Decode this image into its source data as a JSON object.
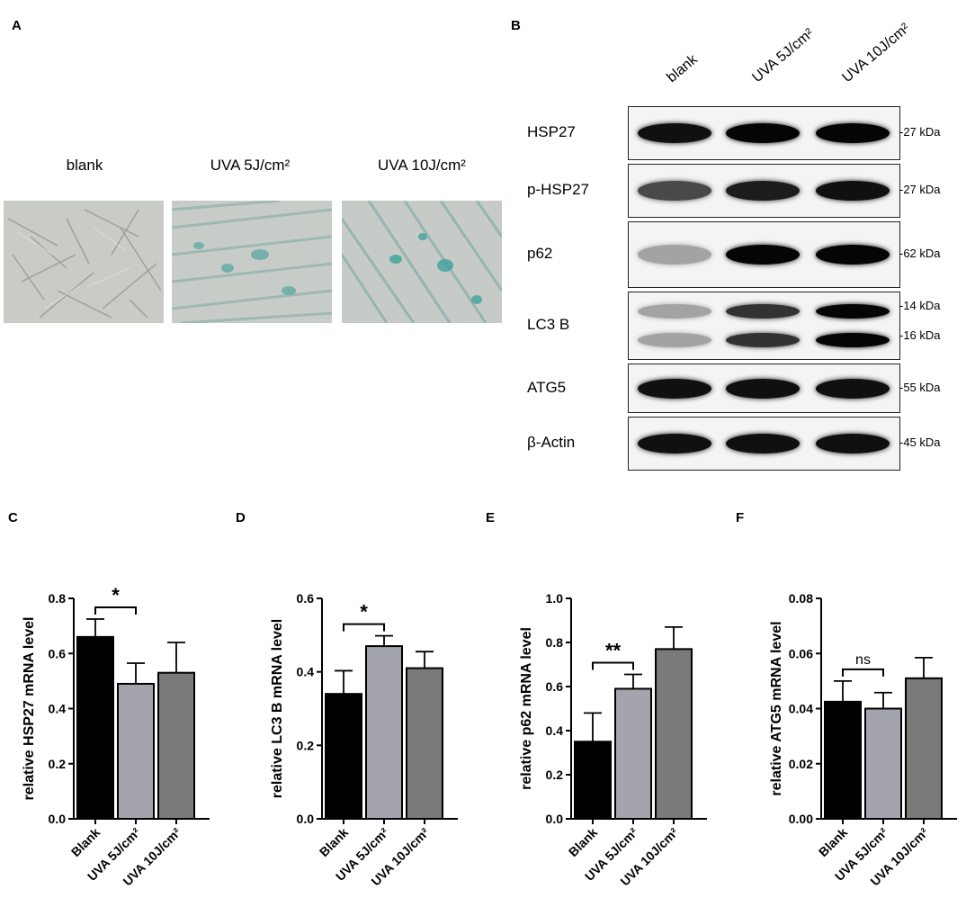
{
  "panel_letters": {
    "A": "A",
    "B": "B",
    "C": "C",
    "D": "D",
    "E": "E",
    "F": "F"
  },
  "panelA": {
    "labels": [
      "blank",
      "UVA 5J/cm²",
      "UVA 10J/cm²"
    ]
  },
  "panelB": {
    "lanes": [
      "blank",
      "UVA 5J/cm²",
      "UVA 10J/cm²"
    ],
    "blots": [
      {
        "protein": "HSP27",
        "kda": [
          "-27 kDa"
        ],
        "intensity": [
          0.95,
          1.0,
          1.0
        ]
      },
      {
        "protein": "p-HSP27",
        "kda": [
          "-27 kDa"
        ],
        "intensity": [
          0.7,
          0.9,
          0.95
        ]
      },
      {
        "protein": "p62",
        "kda": [
          "-62 kDa"
        ],
        "intensity": [
          0.3,
          1.0,
          1.0
        ]
      },
      {
        "protein": "LC3 B",
        "kda": [
          "-14 kDa",
          "-16 kDa"
        ],
        "intensity": [
          0.3,
          0.8,
          1.0
        ]
      },
      {
        "protein": "ATG5",
        "kda": [
          "-55 kDa"
        ],
        "intensity": [
          0.95,
          0.95,
          0.95
        ]
      },
      {
        "protein": "β-Actin",
        "kda": [
          "-45 kDa"
        ],
        "intensity": [
          0.95,
          0.95,
          0.95
        ]
      }
    ]
  },
  "chart_data": [
    {
      "type": "bar",
      "panel": "C",
      "categories": [
        "Blank",
        "UVA 5J/cm²",
        "UVA 10J/cm²"
      ],
      "values": [
        0.66,
        0.49,
        0.53
      ],
      "errors": [
        0.065,
        0.075,
        0.11
      ],
      "ylabel": "relative HSP27 mRNA level",
      "ylim": [
        0,
        0.8
      ],
      "yticks": [
        "0.0",
        "0.2",
        "0.4",
        "0.6",
        "0.8"
      ],
      "annotation": "*",
      "annotation_between": [
        0,
        1
      ],
      "colors": [
        "#000000",
        "#a4a4ac",
        "#7a7a7a"
      ]
    },
    {
      "type": "bar",
      "panel": "D",
      "categories": [
        "Blank",
        "UVA 5J/cm²",
        "UVA 10J/cm²"
      ],
      "values": [
        0.34,
        0.47,
        0.41
      ],
      "errors": [
        0.063,
        0.028,
        0.045
      ],
      "ylabel": "relative LC3 B mRNA level",
      "ylim": [
        0,
        0.6
      ],
      "yticks": [
        "0.0",
        "0.2",
        "0.4",
        "0.6"
      ],
      "annotation": "*",
      "annotation_between": [
        0,
        1
      ],
      "colors": [
        "#000000",
        "#a4a4ac",
        "#7a7a7a"
      ]
    },
    {
      "type": "bar",
      "panel": "E",
      "categories": [
        "Blank",
        "UVA 5J/cm²",
        "UVA 10J/cm²"
      ],
      "values": [
        0.35,
        0.59,
        0.77
      ],
      "errors": [
        0.13,
        0.065,
        0.1
      ],
      "ylabel": "relative p62 mRNA level",
      "ylim": [
        0,
        1.0
      ],
      "yticks": [
        "0.0",
        "0.2",
        "0.4",
        "0.6",
        "0.8",
        "1.0"
      ],
      "annotation": "**",
      "annotation_between": [
        0,
        1
      ],
      "colors": [
        "#000000",
        "#a4a4ac",
        "#7a7a7a"
      ]
    },
    {
      "type": "bar",
      "panel": "F",
      "categories": [
        "Blank",
        "UVA 5J/cm²",
        "UVA 10J/cm²"
      ],
      "values": [
        0.0425,
        0.04,
        0.051
      ],
      "errors": [
        0.0075,
        0.0058,
        0.0075
      ],
      "ylabel": "relative ATG5 mRNA level",
      "ylim": [
        0,
        0.08
      ],
      "yticks": [
        "0.00",
        "0.02",
        "0.04",
        "0.06",
        "0.08"
      ],
      "annotation": "ns",
      "annotation_between": [
        0,
        1
      ],
      "colors": [
        "#000000",
        "#a4a4ac",
        "#7a7a7a"
      ]
    }
  ]
}
